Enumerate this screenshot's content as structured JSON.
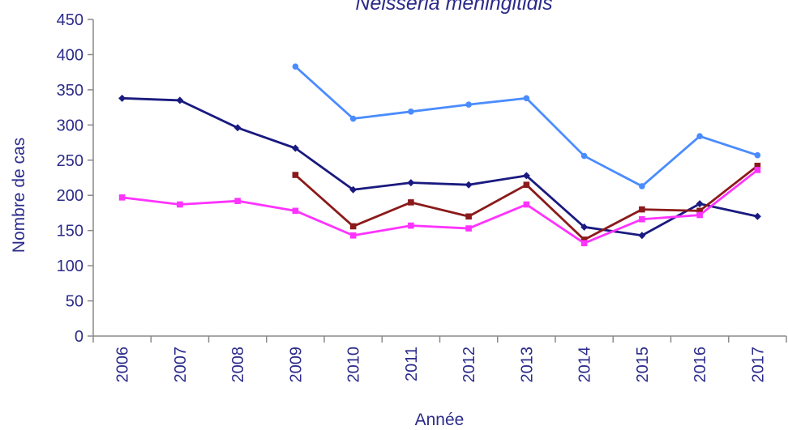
{
  "chart_data": {
    "type": "line",
    "title": "Neisseria meningitidis",
    "xlabel": "Année",
    "ylabel": "Nombre de cas",
    "ylim": [
      0,
      450
    ],
    "yticks": [
      0,
      50,
      100,
      150,
      200,
      250,
      300,
      350,
      400,
      450
    ],
    "categories": [
      "2006",
      "2007",
      "2008",
      "2009",
      "2010",
      "2011",
      "2012",
      "2013",
      "2014",
      "2015",
      "2016",
      "2017"
    ],
    "grid": false,
    "legend": "none",
    "series": [
      {
        "color": "#1a1a80",
        "marker": "diamond",
        "values": [
          338,
          335,
          296,
          267,
          208,
          218,
          215,
          228,
          155,
          143,
          188,
          170
        ]
      },
      {
        "color": "#4a8cff",
        "marker": "circle",
        "values": [
          null,
          null,
          null,
          383,
          309,
          319,
          329,
          338,
          256,
          213,
          284,
          257
        ]
      },
      {
        "color": "#8b1a1a",
        "marker": "square",
        "values": [
          null,
          null,
          null,
          229,
          156,
          190,
          170,
          215,
          137,
          180,
          178,
          242
        ]
      },
      {
        "color": "#ff33ff",
        "marker": "square",
        "values": [
          197,
          187,
          192,
          178,
          143,
          157,
          153,
          187,
          132,
          166,
          172,
          236
        ]
      }
    ]
  }
}
